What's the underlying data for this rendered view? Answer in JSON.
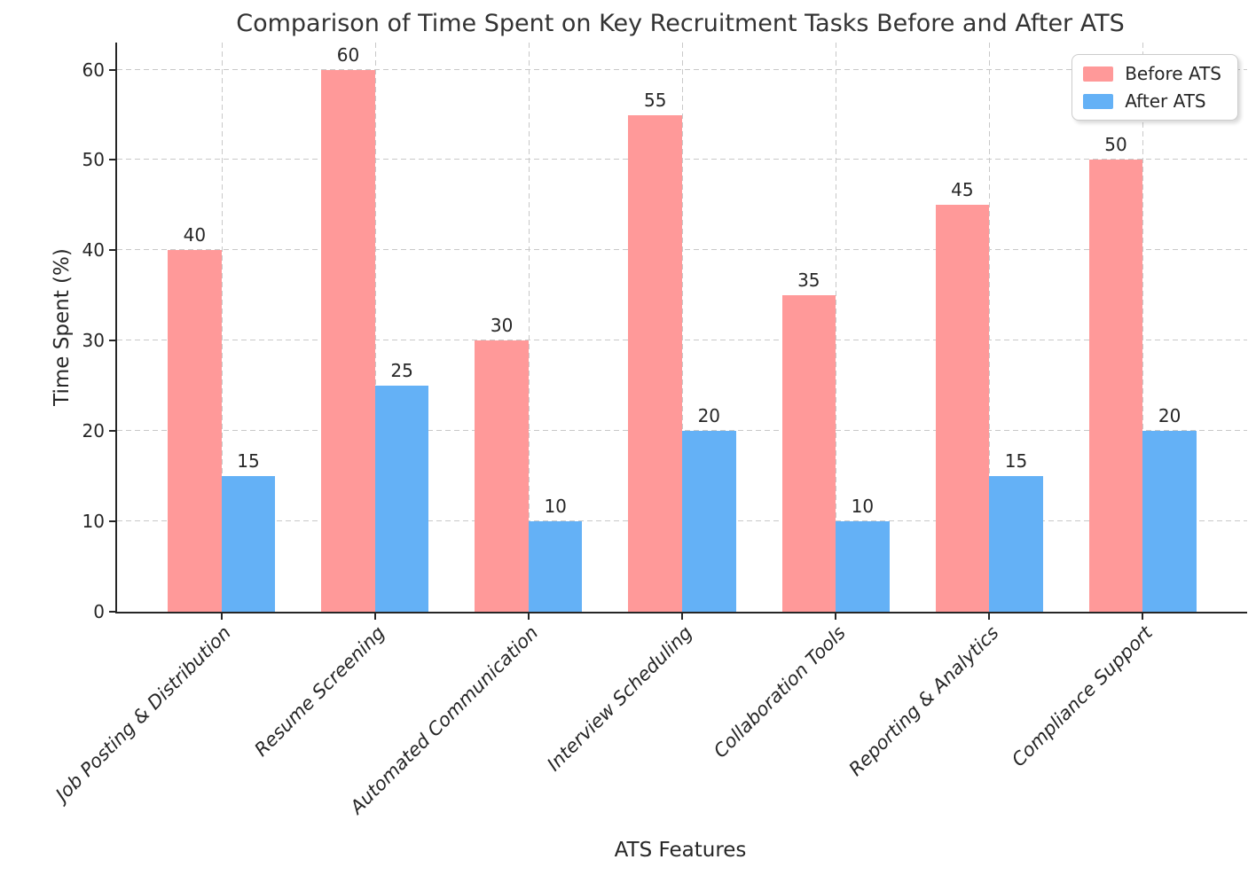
{
  "title": "Comparison of Time Spent on Key Recruitment Tasks Before and After ATS",
  "chart_data": {
    "type": "bar",
    "categories": [
      "Job Posting & Distribution",
      "Resume Screening",
      "Automated Communication",
      "Interview Scheduling",
      "Collaboration Tools",
      "Reporting & Analytics",
      "Compliance Support"
    ],
    "series": [
      {
        "name": "Before ATS",
        "color": "#FF9999",
        "values": [
          40,
          60,
          30,
          55,
          35,
          45,
          50
        ]
      },
      {
        "name": "After ATS",
        "color": "#64B1F6",
        "values": [
          15,
          25,
          10,
          20,
          10,
          15,
          20
        ]
      }
    ],
    "title": "Comparison of Time Spent on Key Recruitment Tasks Before and After ATS",
    "xlabel": "ATS Features",
    "ylabel": "Time Spent (%)",
    "yticks": [
      0,
      10,
      20,
      30,
      40,
      50,
      60
    ],
    "ylim": [
      0,
      63
    ],
    "xlim": [
      -0.68,
      6.68
    ],
    "bar_width": 0.35,
    "grid": true,
    "grid_style": "dashed",
    "bar_value_labels": true,
    "xtick_style": "italic, rotated 45",
    "legend": {
      "position": "upper right",
      "entries": [
        "Before ATS",
        "After ATS"
      ]
    },
    "style": {
      "before_color": "#FF9999",
      "after_color": "#64B1F6",
      "grid_color": "#c8c8c8",
      "spine_color": "#262626",
      "text_color": "#262626",
      "title_color": "#333333",
      "background": "#ffffff"
    }
  }
}
